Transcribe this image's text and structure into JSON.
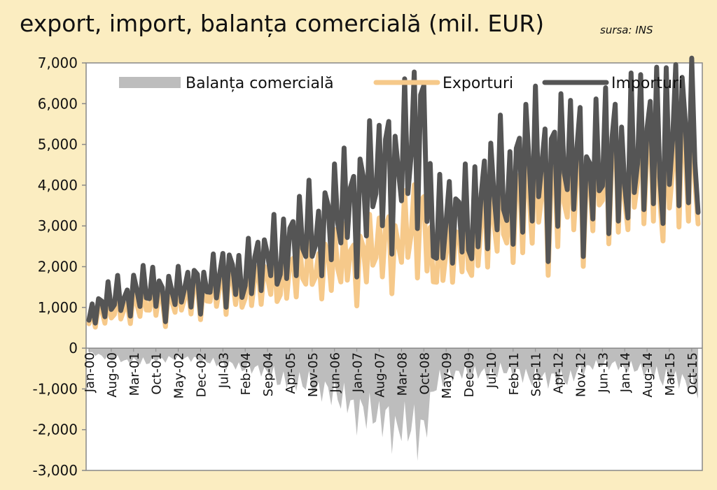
{
  "title": "export, import, balanța comercială (mil. EUR)",
  "source": "sursa: INS",
  "colors": {
    "background": "#fbedc1",
    "plot": "#ffffff",
    "balance": "#bdbdbd",
    "exports": "#f6c98a",
    "imports": "#555555",
    "axis": "#888888"
  },
  "chart_data": {
    "type": "line",
    "title": "export, import, balanța comercială (mil. EUR)",
    "ylim": [
      -3000,
      7000
    ],
    "yticks": [
      7000,
      6000,
      5000,
      4000,
      3000,
      2000,
      1000,
      0,
      -1000,
      -2000,
      -3000
    ],
    "ytick_labels": [
      "7,000",
      "6,000",
      "5,000",
      "4,000",
      "3,000",
      "2,000",
      "1,000",
      "0",
      "-1,000",
      "-2,000",
      "-3,000"
    ],
    "xtick_labels": [
      "Jan-00",
      "Aug-00",
      "Mar-01",
      "Oct-01",
      "May-02",
      "Dec-02",
      "Jul-03",
      "Feb-04",
      "Sep-04",
      "Apr-05",
      "Nov-05",
      "Jun-06",
      "Jan-07",
      "Aug-07",
      "Mar-08",
      "Oct-08",
      "May-09",
      "Dec-09",
      "Jul-10",
      "Feb-11",
      "Sep-11",
      "Apr-12",
      "Nov-12",
      "Jun-13",
      "Jan-14",
      "Aug-14",
      "Mar-15",
      "Oct-15"
    ],
    "x_range": [
      "Jan-00",
      "Dec-15"
    ],
    "legend_position": "top",
    "grid": false,
    "series": [
      {
        "name": "Balanța comercială",
        "type": "area",
        "anchors": [
          [
            "Jan-00",
            -100
          ],
          [
            "Jul-00",
            -250
          ],
          [
            "Jan-01",
            -300
          ],
          [
            "Jul-01",
            -350
          ],
          [
            "Jan-02",
            -250
          ],
          [
            "Jul-02",
            -250
          ],
          [
            "Jan-03",
            -300
          ],
          [
            "Jul-03",
            -400
          ],
          [
            "Jan-04",
            -450
          ],
          [
            "Jul-04",
            -550
          ],
          [
            "Jan-05",
            -750
          ],
          [
            "Jul-05",
            -850
          ],
          [
            "Jan-06",
            -950
          ],
          [
            "Jul-06",
            -1200
          ],
          [
            "Jan-07",
            -1500
          ],
          [
            "Jul-07",
            -1700
          ],
          [
            "Jan-08",
            -1900
          ],
          [
            "Jul-08",
            -2000
          ],
          [
            "Oct-08",
            -2200
          ],
          [
            "Jan-09",
            -900
          ],
          [
            "Jul-09",
            -650
          ],
          [
            "Jan-10",
            -600
          ],
          [
            "Jul-10",
            -650
          ],
          [
            "Jan-11",
            -500
          ],
          [
            "Jul-11",
            -750
          ],
          [
            "Jan-12",
            -700
          ],
          [
            "Jul-12",
            -800
          ],
          [
            "Jan-13",
            -450
          ],
          [
            "Jul-13",
            -400
          ],
          [
            "Jan-14",
            -450
          ],
          [
            "Jul-14",
            -550
          ],
          [
            "Jan-15",
            -700
          ],
          [
            "Jul-15",
            -800
          ],
          [
            "Dec-15",
            -1000
          ]
        ]
      },
      {
        "name": "Exporturi",
        "type": "line",
        "anchors": [
          [
            "Jan-00",
            700
          ],
          [
            "Jul-00",
            900
          ],
          [
            "Jan-01",
            1000
          ],
          [
            "Jul-01",
            1100
          ],
          [
            "Jan-02",
            1100
          ],
          [
            "Jul-02",
            1200
          ],
          [
            "Jan-03",
            1300
          ],
          [
            "Jul-03",
            1450
          ],
          [
            "Jan-04",
            1450
          ],
          [
            "Jul-04",
            1600
          ],
          [
            "Jan-05",
            1700
          ],
          [
            "Jul-05",
            1900
          ],
          [
            "Jan-06",
            2000
          ],
          [
            "Jul-06",
            2100
          ],
          [
            "Jan-07",
            2200
          ],
          [
            "Jul-07",
            2400
          ],
          [
            "Jan-08",
            2600
          ],
          [
            "Jul-08",
            2900
          ],
          [
            "Oct-08",
            3000
          ],
          [
            "Jan-09",
            2100
          ],
          [
            "Jul-09",
            2400
          ],
          [
            "Jan-10",
            2600
          ],
          [
            "Jul-10",
            3100
          ],
          [
            "Jan-11",
            3300
          ],
          [
            "Jul-11",
            3700
          ],
          [
            "Jan-12",
            3700
          ],
          [
            "Jul-12",
            3800
          ],
          [
            "Jan-13",
            3900
          ],
          [
            "Jul-13",
            4100
          ],
          [
            "Jan-14",
            4200
          ],
          [
            "Jul-14",
            4400
          ],
          [
            "Jan-15",
            4300
          ],
          [
            "Jul-15",
            4500
          ],
          [
            "Dec-15",
            4300
          ]
        ]
      },
      {
        "name": "Importuri",
        "type": "line",
        "anchors": [
          [
            "Jan-00",
            800
          ],
          [
            "Jul-00",
            1150
          ],
          [
            "Jan-01",
            1300
          ],
          [
            "Jul-01",
            1450
          ],
          [
            "Jan-02",
            1350
          ],
          [
            "Jul-02",
            1450
          ],
          [
            "Jan-03",
            1550
          ],
          [
            "Jul-03",
            1750
          ],
          [
            "Jan-04",
            1800
          ],
          [
            "Jul-04",
            2100
          ],
          [
            "Jan-05",
            2350
          ],
          [
            "Jul-05",
            2700
          ],
          [
            "Jan-06",
            2900
          ],
          [
            "Jul-06",
            3300
          ],
          [
            "Jan-07",
            3700
          ],
          [
            "Jul-07",
            4100
          ],
          [
            "Jan-08",
            4500
          ],
          [
            "Jul-08",
            4900
          ],
          [
            "Oct-08",
            5200
          ],
          [
            "Jan-09",
            2900
          ],
          [
            "Jul-09",
            3100
          ],
          [
            "Jan-10",
            3200
          ],
          [
            "Jul-10",
            3800
          ],
          [
            "Jan-11",
            4000
          ],
          [
            "Jul-11",
            4500
          ],
          [
            "Jan-12",
            4400
          ],
          [
            "Jul-12",
            4600
          ],
          [
            "Jan-13",
            4300
          ],
          [
            "Jul-13",
            4500
          ],
          [
            "Jan-14",
            4600
          ],
          [
            "Jul-14",
            4900
          ],
          [
            "Jan-15",
            5000
          ],
          [
            "Jul-15",
            5300
          ],
          [
            "Dec-15",
            4700
          ]
        ]
      }
    ]
  }
}
